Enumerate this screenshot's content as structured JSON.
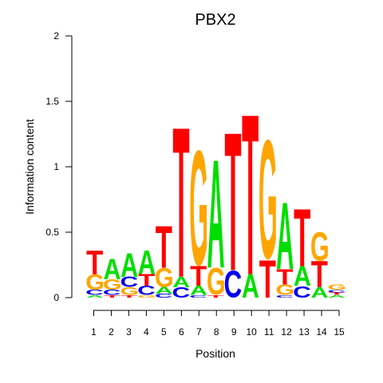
{
  "chart_data": {
    "type": "sequence-logo",
    "title": "PBX2",
    "xlabel": "Position",
    "ylabel": "Information content",
    "ylim": [
      0,
      2
    ],
    "yticks": [
      "0",
      "0.5",
      "1",
      "1.5",
      "2"
    ],
    "positions": [
      "1",
      "2",
      "3",
      "4",
      "5",
      "6",
      "7",
      "8",
      "9",
      "10",
      "11",
      "12",
      "13",
      "14",
      "15"
    ],
    "colors": {
      "A": "#00dd00",
      "C": "#0000ee",
      "G": "#ffa500",
      "T": "#ff0000"
    },
    "stacks": [
      [
        [
          "A",
          0.02
        ],
        [
          "C",
          0.04
        ],
        [
          "G",
          0.12
        ],
        [
          "T",
          0.18
        ]
      ],
      [
        [
          "T",
          0.02
        ],
        [
          "C",
          0.04
        ],
        [
          "G",
          0.08
        ],
        [
          "A",
          0.16
        ]
      ],
      [
        [
          "T",
          0.02
        ],
        [
          "G",
          0.06
        ],
        [
          "C",
          0.08
        ],
        [
          "A",
          0.18
        ]
      ],
      [
        [
          "G",
          0.02
        ],
        [
          "C",
          0.07
        ],
        [
          "T",
          0.09
        ],
        [
          "A",
          0.18
        ]
      ],
      [
        [
          "C",
          0.03
        ],
        [
          "A",
          0.05
        ],
        [
          "G",
          0.15
        ],
        [
          "T",
          0.32
        ]
      ],
      [
        [
          "C",
          0.08
        ],
        [
          "A",
          0.08
        ],
        [
          "T",
          1.15
        ]
      ],
      [
        [
          "C",
          0.02
        ],
        [
          "A",
          0.07
        ],
        [
          "T",
          0.15
        ],
        [
          "G",
          0.89
        ]
      ],
      [
        [
          "T",
          0.02
        ],
        [
          "G",
          0.21
        ],
        [
          "A",
          0.83
        ]
      ],
      [
        [
          "C",
          0.21
        ],
        [
          "T",
          1.06
        ]
      ],
      [
        [
          "A",
          0.18
        ],
        [
          "T",
          1.23
        ]
      ],
      [
        [
          "T",
          0.29
        ],
        [
          "G",
          0.92
        ]
      ],
      [
        [
          "C",
          0.02
        ],
        [
          "G",
          0.08
        ],
        [
          "T",
          0.12
        ],
        [
          "A",
          0.51
        ]
      ],
      [
        [
          "C",
          0.09
        ],
        [
          "A",
          0.15
        ],
        [
          "T",
          0.44
        ]
      ],
      [
        [
          "A",
          0.08
        ],
        [
          "T",
          0.2
        ],
        [
          "G",
          0.22
        ]
      ],
      [
        [
          "A",
          0.02
        ],
        [
          "T",
          0.02
        ],
        [
          "C",
          0.02
        ],
        [
          "G",
          0.04
        ]
      ]
    ]
  }
}
